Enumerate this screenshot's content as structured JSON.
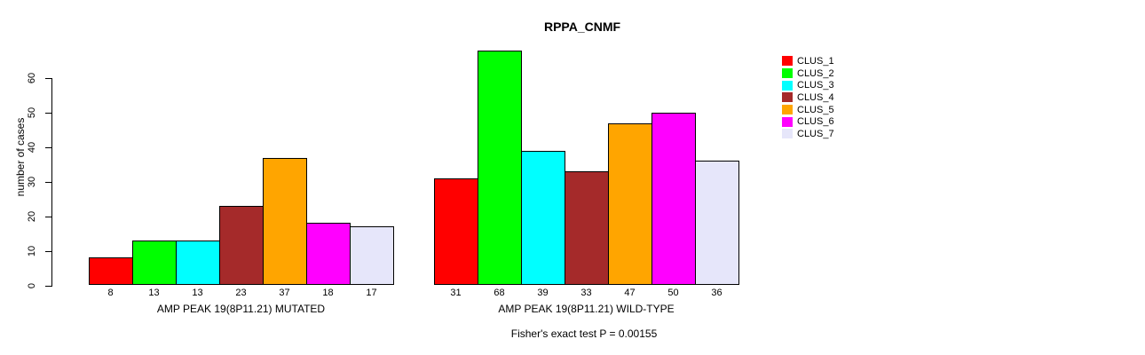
{
  "title": "RPPA_CNMF",
  "ylabel": "number of cases",
  "footer": "Fisher's exact test P = 0.00155",
  "legend": {
    "items": [
      {
        "label": "CLUS_1",
        "color": "#FF0000"
      },
      {
        "label": "CLUS_2",
        "color": "#00FF00"
      },
      {
        "label": "CLUS_3",
        "color": "#00FFFF"
      },
      {
        "label": "CLUS_4",
        "color": "#A52A2A"
      },
      {
        "label": "CLUS_5",
        "color": "#FFA500"
      },
      {
        "label": "CLUS_6",
        "color": "#FF00FF"
      },
      {
        "label": "CLUS_7",
        "color": "#E6E6FA"
      }
    ]
  },
  "chart_data": {
    "type": "bar",
    "title": "RPPA_CNMF",
    "ylabel": "number of cases",
    "xlabel": "",
    "ylim": [
      0,
      60
    ],
    "yticks": [
      0,
      10,
      20,
      30,
      40,
      50,
      60
    ],
    "grid": false,
    "legend_position": "right",
    "series_names": [
      "CLUS_1",
      "CLUS_2",
      "CLUS_3",
      "CLUS_4",
      "CLUS_5",
      "CLUS_6",
      "CLUS_7"
    ],
    "series_colors": [
      "#FF0000",
      "#00FF00",
      "#00FFFF",
      "#A52A2A",
      "#FFA500",
      "#FF00FF",
      "#E6E6FA"
    ],
    "groups": [
      {
        "label": "AMP PEAK 19(8P11.21) MUTATED",
        "values": [
          8,
          13,
          13,
          23,
          37,
          18,
          17
        ]
      },
      {
        "label": "AMP PEAK 19(8P11.21) WILD-TYPE",
        "values": [
          31,
          68,
          39,
          33,
          47,
          50,
          36
        ]
      }
    ],
    "annotation": "Fisher's exact test P = 0.00155"
  }
}
